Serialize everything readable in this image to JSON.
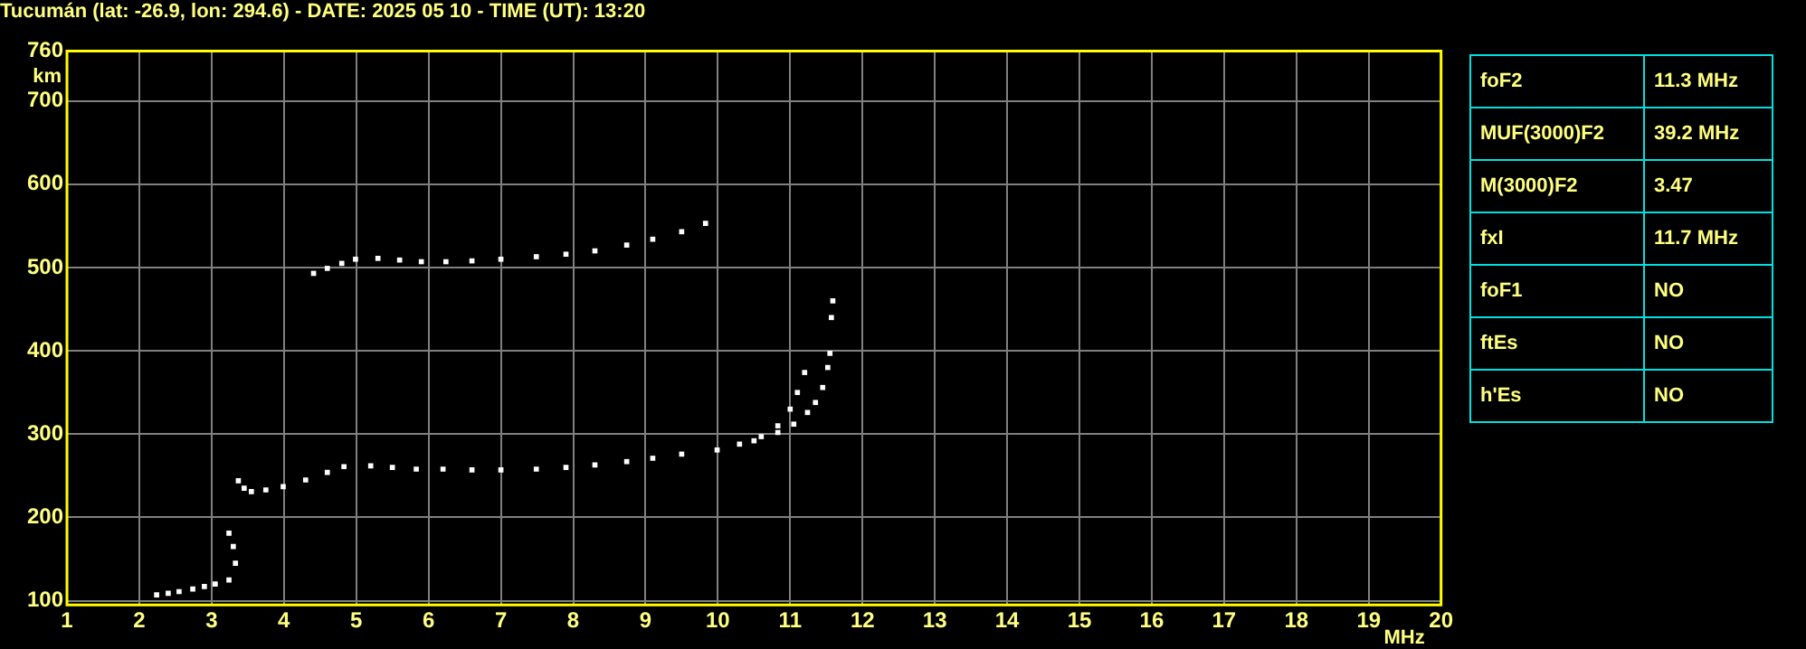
{
  "chart_data": [
    {
      "type": "scatter",
      "title": "Tucumán (lat: -26.9, lon: 294.6) - DATE: 2025 05 10 - TIME (UT): 13:20",
      "xlabel": "MHz",
      "ylabel": "km",
      "xlim": [
        1,
        20
      ],
      "xticks": [
        1,
        2,
        3,
        4,
        5,
        6,
        7,
        8,
        9,
        10,
        11,
        12,
        13,
        14,
        15,
        16,
        17,
        18,
        19,
        20
      ],
      "ylim": [
        95,
        760
      ],
      "yticks": [
        100,
        200,
        300,
        400,
        500,
        600,
        700,
        760
      ],
      "grid": true,
      "legend": false,
      "marker": "square",
      "series": [
        {
          "color": "#ffffff",
          "x": [
            3.37,
            3.45,
            3.55,
            3.75,
            3.99,
            4.3,
            4.6,
            4.83,
            5.2,
            5.5,
            5.83,
            6.2,
            6.6,
            7.0,
            7.49,
            7.9,
            8.3,
            8.74,
            9.1,
            9.5,
            9.99,
            10.3,
            10.6,
            10.83,
            11.0,
            11.1,
            11.2
          ],
          "values": [
            244,
            235,
            231,
            233,
            237,
            245,
            254,
            261,
            262,
            260,
            258,
            258,
            257,
            257,
            258,
            260,
            263,
            267,
            271,
            276,
            281,
            288,
            297,
            310,
            330,
            350,
            374
          ]
        },
        {
          "color": "#ffffff",
          "x": [
            10.5,
            10.83,
            11.05,
            11.24,
            11.35,
            11.45,
            11.52,
            11.55,
            11.57,
            11.59
          ],
          "values": [
            292,
            302,
            312,
            326,
            338,
            356,
            380,
            397,
            440,
            460
          ]
        },
        {
          "color": "#ffffff",
          "x": [
            4.41,
            4.6,
            4.8,
            4.99,
            5.3,
            5.6,
            5.9,
            6.24,
            6.6,
            7.0,
            7.49,
            7.9,
            8.3,
            8.74,
            9.1,
            9.5,
            9.83
          ],
          "values": [
            493,
            499,
            505,
            510,
            511,
            509,
            507,
            507,
            508,
            510,
            513,
            516,
            520,
            527,
            534,
            543,
            553
          ]
        },
        {
          "color": "#ffffff",
          "x": [
            2.24,
            2.4,
            2.55,
            2.74,
            2.9,
            3.05,
            3.24,
            3.33,
            3.3,
            3.24
          ],
          "values": [
            107,
            109,
            111,
            114,
            117,
            120,
            125,
            145,
            165,
            181
          ]
        }
      ]
    },
    {
      "type": "other",
      "categories": [
        "foF2",
        "MUF(3000)F2",
        "M(3000)F2",
        "fxI",
        "foF1",
        "ftEs",
        "h'Es"
      ],
      "value_labels": [
        "11.3 MHz",
        "39.2 MHz",
        "3.47",
        "11.7 MHz",
        "NO",
        "NO",
        "NO"
      ]
    }
  ]
}
